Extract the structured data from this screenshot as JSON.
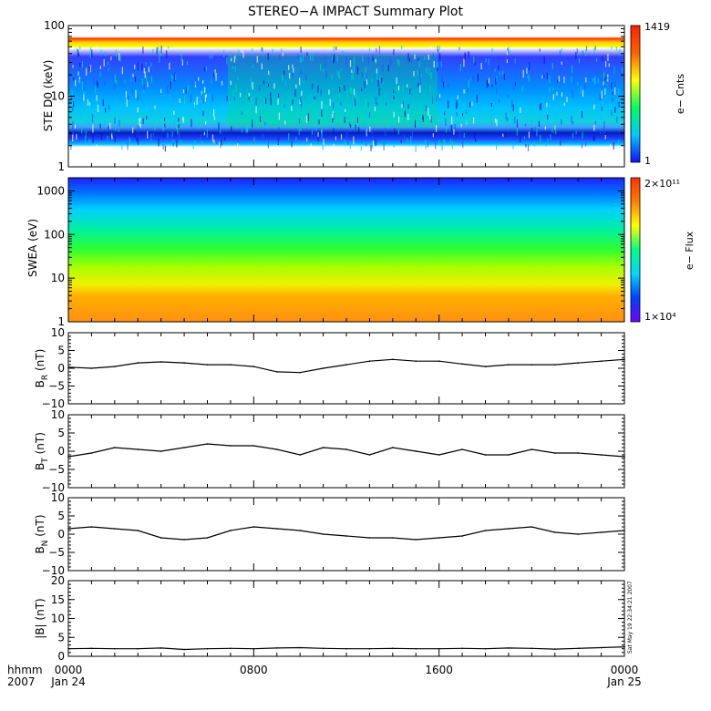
{
  "title": "STEREO−A IMPACT Summary Plot",
  "chart_data": [
    {
      "type": "heatmap",
      "ylabel": "STE D0 (keV)",
      "yscale": "log",
      "ylim": [
        1,
        100
      ],
      "yticks": [
        "1",
        "10",
        "100"
      ],
      "colorbar": {
        "label": "e− Cnts",
        "max": "1419",
        "min": "1",
        "colors": [
          "#1010ff",
          "#00c8ff",
          "#00ff60",
          "#ffff00",
          "#ff6000",
          "#ff2000"
        ]
      }
    },
    {
      "type": "heatmap",
      "ylabel": "SWEA (eV)",
      "yscale": "log",
      "ylim": [
        1,
        2000
      ],
      "yticks": [
        "1",
        "10",
        "100",
        "1000"
      ],
      "colorbar": {
        "label": "e− Flux",
        "max": "2×10¹¹",
        "min": "1×10⁴",
        "colors": [
          "#7000ff",
          "#0040ff",
          "#00d8ff",
          "#00ff80",
          "#ffff00",
          "#ff8000",
          "#ff3000"
        ]
      }
    },
    {
      "type": "line",
      "ylabel": "B",
      "ylabel_sub": "R",
      "ylabel_unit": " (nT)",
      "ylim": [
        -10,
        10
      ],
      "yticks": [
        "−10",
        "−5",
        "0",
        "5",
        "10"
      ],
      "x_hours": [
        0,
        1,
        2,
        3,
        4,
        5,
        6,
        7,
        8,
        9,
        10,
        11,
        12,
        13,
        14,
        15,
        16,
        17,
        18,
        19,
        20,
        21,
        22,
        23,
        24
      ],
      "values": [
        0.3,
        0,
        0.5,
        1.5,
        1.8,
        1.5,
        1,
        1,
        0.5,
        -1,
        -1.2,
        0,
        1,
        2,
        2.5,
        2,
        2,
        1.2,
        0.5,
        1,
        1,
        1,
        1.5,
        2,
        2.5
      ]
    },
    {
      "type": "line",
      "ylabel": "B",
      "ylabel_sub": "T",
      "ylabel_unit": " (nT)",
      "ylim": [
        -10,
        10
      ],
      "yticks": [
        "−10",
        "−5",
        "0",
        "5",
        "10"
      ],
      "x_hours": [
        0,
        1,
        2,
        3,
        4,
        5,
        6,
        7,
        8,
        9,
        10,
        11,
        12,
        13,
        14,
        15,
        16,
        17,
        18,
        19,
        20,
        21,
        22,
        23,
        24
      ],
      "values": [
        -1.5,
        -0.5,
        1,
        0.5,
        0,
        1,
        2,
        1.5,
        1.5,
        0.5,
        -1,
        1,
        0.5,
        -1,
        1,
        0,
        -1,
        0.5,
        -1,
        -1,
        0.5,
        -0.5,
        -0.5,
        -1,
        -1.5
      ]
    },
    {
      "type": "line",
      "ylabel": "B",
      "ylabel_sub": "N",
      "ylabel_unit": " (nT)",
      "ylim": [
        -10,
        10
      ],
      "yticks": [
        "−10",
        "−5",
        "0",
        "5",
        "10"
      ],
      "x_hours": [
        0,
        1,
        2,
        3,
        4,
        5,
        6,
        7,
        8,
        9,
        10,
        11,
        12,
        13,
        14,
        15,
        16,
        17,
        18,
        19,
        20,
        21,
        22,
        23,
        24
      ],
      "values": [
        1.5,
        2,
        1.5,
        1,
        -1,
        -1.5,
        -1,
        1,
        2,
        1.5,
        1,
        0,
        -0.5,
        -1,
        -1,
        -1.5,
        -1,
        -0.5,
        1,
        1.5,
        2,
        0.5,
        0,
        0.5,
        1
      ]
    },
    {
      "type": "line",
      "ylabel": "|B| (nT)",
      "ylim": [
        0,
        20
      ],
      "yticks": [
        "0",
        "5",
        "10",
        "15",
        "20"
      ],
      "x_hours": [
        0,
        1,
        2,
        3,
        4,
        5,
        6,
        7,
        8,
        9,
        10,
        11,
        12,
        13,
        14,
        15,
        16,
        17,
        18,
        19,
        20,
        21,
        22,
        23,
        24
      ],
      "values": [
        2,
        2.1,
        2,
        2,
        2.2,
        1.8,
        2,
        2.1,
        2,
        2.2,
        2.3,
        2.1,
        2,
        2,
        2.1,
        2,
        2,
        2.1,
        2,
        2.2,
        2.1,
        1.9,
        2.1,
        2.3,
        2.5
      ],
      "side_note": "Sat May 19 22:34:21 2007"
    }
  ],
  "time_axis": {
    "corner_top": "hhmm",
    "corner_bottom": "2007",
    "ticks": [
      {
        "hour": 0,
        "time": "0000",
        "date": "Jan 24"
      },
      {
        "hour": 8,
        "time": "0800",
        "date": ""
      },
      {
        "hour": 16,
        "time": "1600",
        "date": ""
      },
      {
        "hour": 24,
        "time": "0000",
        "date": "Jan 25"
      }
    ]
  }
}
